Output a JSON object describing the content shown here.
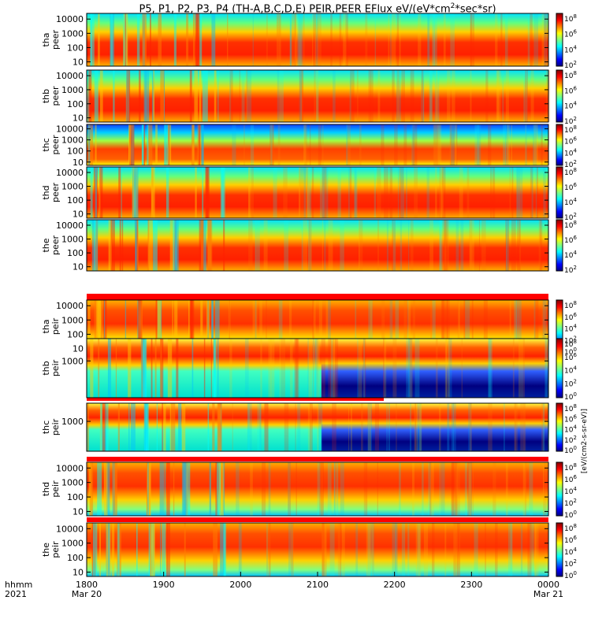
{
  "chart_data": {
    "type": "heatmap",
    "title": "P5, P1, P2, P3, P4 (TH-A,B,C,D,E) PEIR,PEER EFlux eV/(eV*cm2*sec*sr)",
    "title_parts": {
      "prefix": "P5, P1, P2, P3, P4 (TH-A,B,C,D,E) PEIR,PEER EFlux eV/(eV*cm",
      "sup": "2",
      "suffix": "*sec*sr)"
    },
    "x_axis": {
      "label_line1": "hhmm",
      "label_line2": "2021",
      "ticks": [
        {
          "value": 0,
          "text": "1800",
          "sub": "Mar 20"
        },
        {
          "value": 60,
          "text": "1900",
          "sub": ""
        },
        {
          "value": 120,
          "text": "2000",
          "sub": ""
        },
        {
          "value": 180,
          "text": "2100",
          "sub": ""
        },
        {
          "value": 240,
          "text": "2200",
          "sub": ""
        },
        {
          "value": 300,
          "text": "2300",
          "sub": ""
        },
        {
          "value": 360,
          "text": "0000",
          "sub": "Mar 21"
        }
      ],
      "range": [
        "2021-03-20 18:00",
        "2021-03-21 00:00"
      ]
    },
    "panels": [
      {
        "id": "tha_peer",
        "label1": "tha",
        "label2": "peer",
        "y_ticks": [
          "10000",
          "1000",
          "100",
          "10"
        ],
        "y_range_eV": [
          5,
          25000
        ],
        "log_y": true
      },
      {
        "id": "thb_peer",
        "label1": "thb",
        "label2": "peer",
        "y_ticks": [
          "10000",
          "1000",
          "100",
          "10"
        ],
        "y_range_eV": [
          5,
          25000
        ],
        "log_y": true
      },
      {
        "id": "thc_peer",
        "label1": "thc",
        "label2": "peer",
        "y_ticks": [
          "10000",
          "1000",
          "100",
          "10"
        ],
        "y_range_eV": [
          5,
          25000
        ],
        "log_y": true
      },
      {
        "id": "thd_peer",
        "label1": "thd",
        "label2": "peer",
        "y_ticks": [
          "10000",
          "1000",
          "100",
          "10"
        ],
        "y_range_eV": [
          5,
          25000
        ],
        "log_y": true
      },
      {
        "id": "the_peer",
        "label1": "the",
        "label2": "peer",
        "y_ticks": [
          "10000",
          "1000",
          "100",
          "10"
        ],
        "y_range_eV": [
          5,
          25000
        ],
        "log_y": true
      },
      {
        "id": "tha_peir",
        "label1": "tha",
        "label2": "peir",
        "y_ticks": [
          "10000",
          "1000",
          "100",
          "10"
        ],
        "y_range_eV": [
          5,
          25000
        ],
        "log_y": true
      },
      {
        "id": "thb_peir",
        "label1": "thb",
        "label2": "peir",
        "y_ticks": [
          "1000"
        ],
        "y_range_eV": [
          5,
          25000
        ],
        "log_y": true
      },
      {
        "id": "thc_peir",
        "label1": "thc",
        "label2": "peir",
        "y_ticks": [
          "1000"
        ],
        "y_range_eV": [
          5,
          25000
        ],
        "log_y": true
      },
      {
        "id": "thd_peir",
        "label1": "thd",
        "label2": "peir",
        "y_ticks": [
          "10000",
          "1000",
          "100",
          "10"
        ],
        "y_range_eV": [
          5,
          25000
        ],
        "log_y": true
      },
      {
        "id": "the_peir",
        "label1": "the",
        "label2": "peir",
        "y_ticks": [
          "10000",
          "1000",
          "100",
          "10"
        ],
        "y_range_eV": [
          5,
          25000
        ],
        "log_y": true
      }
    ],
    "colorbar": {
      "scale": "log",
      "peer_ticks": [
        {
          "mantissa": "10",
          "exp": "8"
        },
        {
          "mantissa": "10",
          "exp": "6"
        },
        {
          "mantissa": "10",
          "exp": "4"
        },
        {
          "mantissa": "10",
          "exp": "2"
        }
      ],
      "peir_ticks": [
        {
          "mantissa": "10",
          "exp": "8"
        },
        {
          "mantissa": "10",
          "exp": "6"
        },
        {
          "mantissa": "10",
          "exp": "4"
        },
        {
          "mantissa": "10",
          "exp": "2"
        },
        {
          "mantissa": "10",
          "exp": "0"
        }
      ],
      "unit_label": "[eV/(cm2-s-sr-eV)]",
      "colors": [
        "#000080",
        "#0000ff",
        "#0080ff",
        "#00ffff",
        "#80ff80",
        "#ffff00",
        "#ff8000",
        "#ff0000",
        "#800000"
      ]
    },
    "grid": false,
    "legend": "none"
  }
}
